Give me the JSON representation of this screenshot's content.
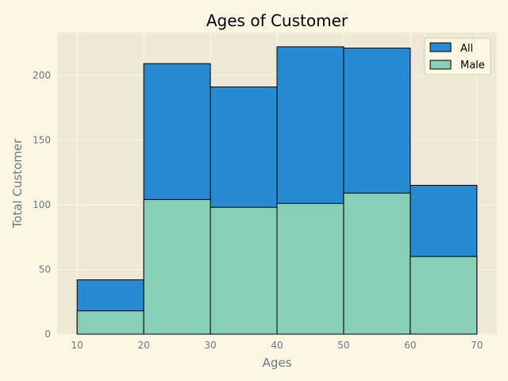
{
  "chart_data": {
    "type": "bar",
    "title": "Ages of Customer",
    "xlabel": "Ages",
    "ylabel": "Total Customer",
    "bin_edges": [
      10,
      20,
      30,
      40,
      50,
      60,
      70
    ],
    "xlim": [
      7,
      73
    ],
    "ylim": [
      0,
      233
    ],
    "x_ticks": [
      10,
      20,
      30,
      40,
      50,
      60,
      70
    ],
    "y_ticks": [
      0,
      50,
      100,
      150,
      200
    ],
    "grid": true,
    "legend_position": "top-right",
    "series": [
      {
        "name": "All",
        "color": "#268bd2",
        "values": [
          42,
          209,
          191,
          222,
          221,
          115
        ]
      },
      {
        "name": "Male",
        "color": "#87cfb6",
        "values": [
          18,
          104,
          98,
          101,
          109,
          60
        ]
      }
    ]
  },
  "colors": {
    "figure_background": "#fdf6e3",
    "axes_background": "#efe8d6",
    "grid": "#fdf6e3",
    "edge": "#000000"
  }
}
